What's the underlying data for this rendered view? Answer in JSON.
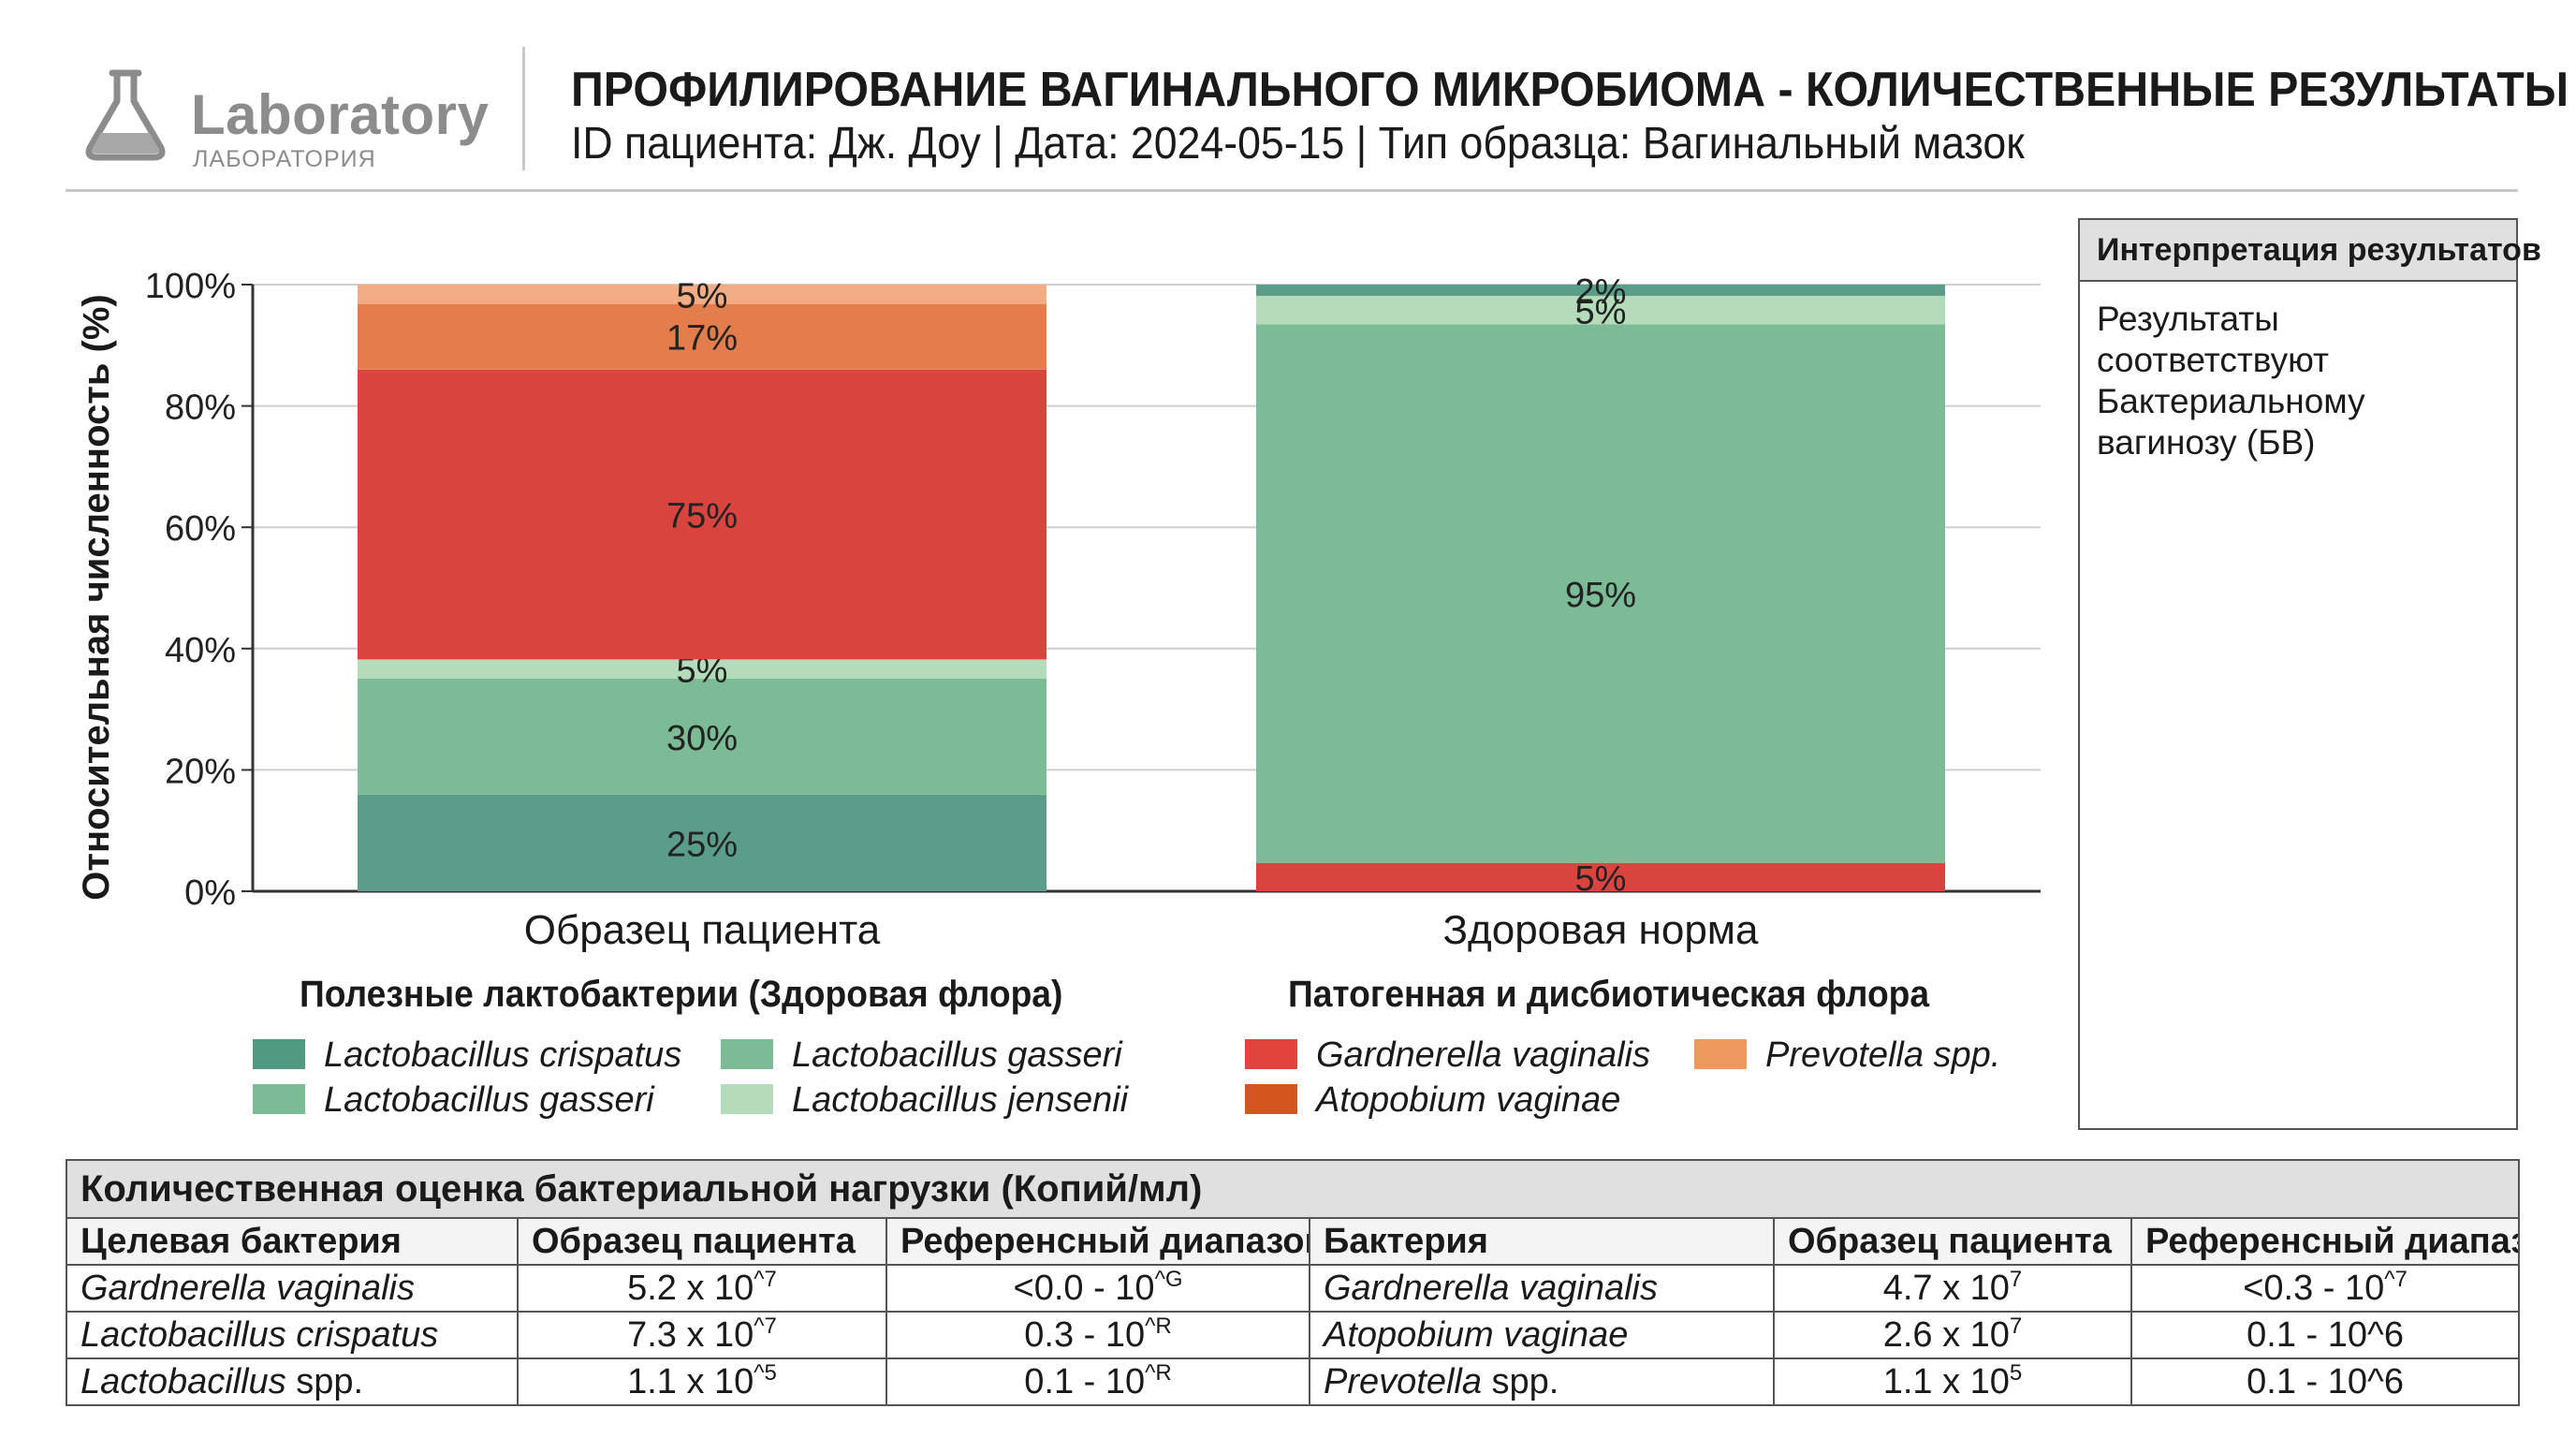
{
  "header": {
    "logo_text": "Laboratory",
    "logo_sub": "ЛАБОРАТОРИЯ",
    "title": "ПРОФИЛИРОВАНИЕ ВАГИНАЛЬНОГО МИКРОБИОМА - КОЛИЧЕСТВЕННЫЕ РЕЗУЛЬТАТЫ ПЦР",
    "subtitle": "ID пациента: Дж. Доу | Дата: 2024-05-15 | Тип образца: Вагинальный мазок"
  },
  "chart_data": {
    "type": "bar",
    "stacked": true,
    "categories": [
      "Образец пациента",
      "Здоровая норма"
    ],
    "ylabel": "Относительная численность (%)",
    "ylim": [
      0,
      100
    ],
    "yticks": [
      "0%",
      "20%",
      "40%",
      "60%",
      "80%",
      "100%"
    ],
    "grid": true,
    "bars": [
      {
        "category": "Образец пациента",
        "segments": [
          {
            "value": 25,
            "label": "25%",
            "color": "#5a9e89"
          },
          {
            "value": 30,
            "label": "30%",
            "color": "#7bbb95"
          },
          {
            "value": 5,
            "label": "5%",
            "color": "#b4dcbb"
          },
          {
            "value": 75,
            "label": "75%",
            "color": "#d9453e"
          },
          {
            "value": 17,
            "label": "17%",
            "color": "#e47d4c"
          },
          {
            "value": 5,
            "label": "5%",
            "color": "#f2ad85"
          }
        ]
      },
      {
        "category": "Здоровая норма",
        "segments": [
          {
            "value": 5,
            "label": "5%",
            "color": "#d9453e"
          },
          {
            "value": 95,
            "label": "95%",
            "color": "#7bbb95"
          },
          {
            "value": 5,
            "label": "5%",
            "color": "#b4dcbb"
          },
          {
            "value": 2,
            "label": "2%",
            "color": "#5a9e89"
          }
        ]
      }
    ]
  },
  "legend": {
    "beneficial": {
      "title": "Полезные лактобактерии (Здоровая флора)",
      "items": [
        {
          "label": "Lactobacillus crispatus",
          "color": "#4f9a80"
        },
        {
          "label": "Lactobacillus gasseri",
          "color": "#7bbb95"
        },
        {
          "label": "Lactobacillus gasseri",
          "color": "#7bbb95"
        },
        {
          "label": "Lactobacillus jensenii",
          "color": "#b4dcbb"
        }
      ]
    },
    "pathogenic": {
      "title": "Патогенная и дисбиотическая флора",
      "items": [
        {
          "label": "Gardnerella vaginalis",
          "color": "#e0443c"
        },
        {
          "label": "Prevotella spp.",
          "color": "#f0995e"
        },
        {
          "label": "Atopobium vaginae",
          "color": "#d4561c"
        }
      ]
    }
  },
  "interpretation": {
    "title": "Интерпретация результатов",
    "text": "Результаты соответствуют Бактериальному вагинозу (БВ)"
  },
  "table": {
    "caption": "Количественная оценка бактериальной нагрузки (Копий/мл)",
    "headers": [
      "Целевая бактерия",
      "Образец пациента",
      "Референсный диапазон",
      "Бактерия",
      "Образец пациента",
      "Референсный диапазон"
    ],
    "rows": [
      {
        "target": "Gardnerella vaginalis",
        "patient_base": "5.2 x 10",
        "patient_exp": "^7",
        "ref_base": "<0.0 - 10",
        "ref_exp": "^G",
        "target2": "Gardnerella vaginalis",
        "patient2_base": "4.7 x 10",
        "patient2_exp": "7",
        "ref2_base": "<0.3 - 10",
        "ref2_exp": "^7"
      },
      {
        "target": "Lactobacillus crispatus",
        "patient_base": "7.3 x 10",
        "patient_exp": "^7",
        "ref_base": "0.3 - 10",
        "ref_exp": "^R",
        "target2": "Atopobium vaginae",
        "patient2_base": "2.6 x 10",
        "patient2_exp": "7",
        "ref2_base": "0.1 - 10^6",
        "ref2_exp": ""
      },
      {
        "target_italic": "Lactobacillus",
        "target_rest": " spp.",
        "patient_base": "1.1 x 10",
        "patient_exp": "^5",
        "ref_base": "0.1 - 10",
        "ref_exp": "^R",
        "target2_italic": "Prevotella",
        "target2_rest": " spp.",
        "patient2_base": "1.1 x 10",
        "patient2_exp": "5",
        "ref2_base": "0.1 - 10^6",
        "ref2_exp": ""
      }
    ]
  }
}
